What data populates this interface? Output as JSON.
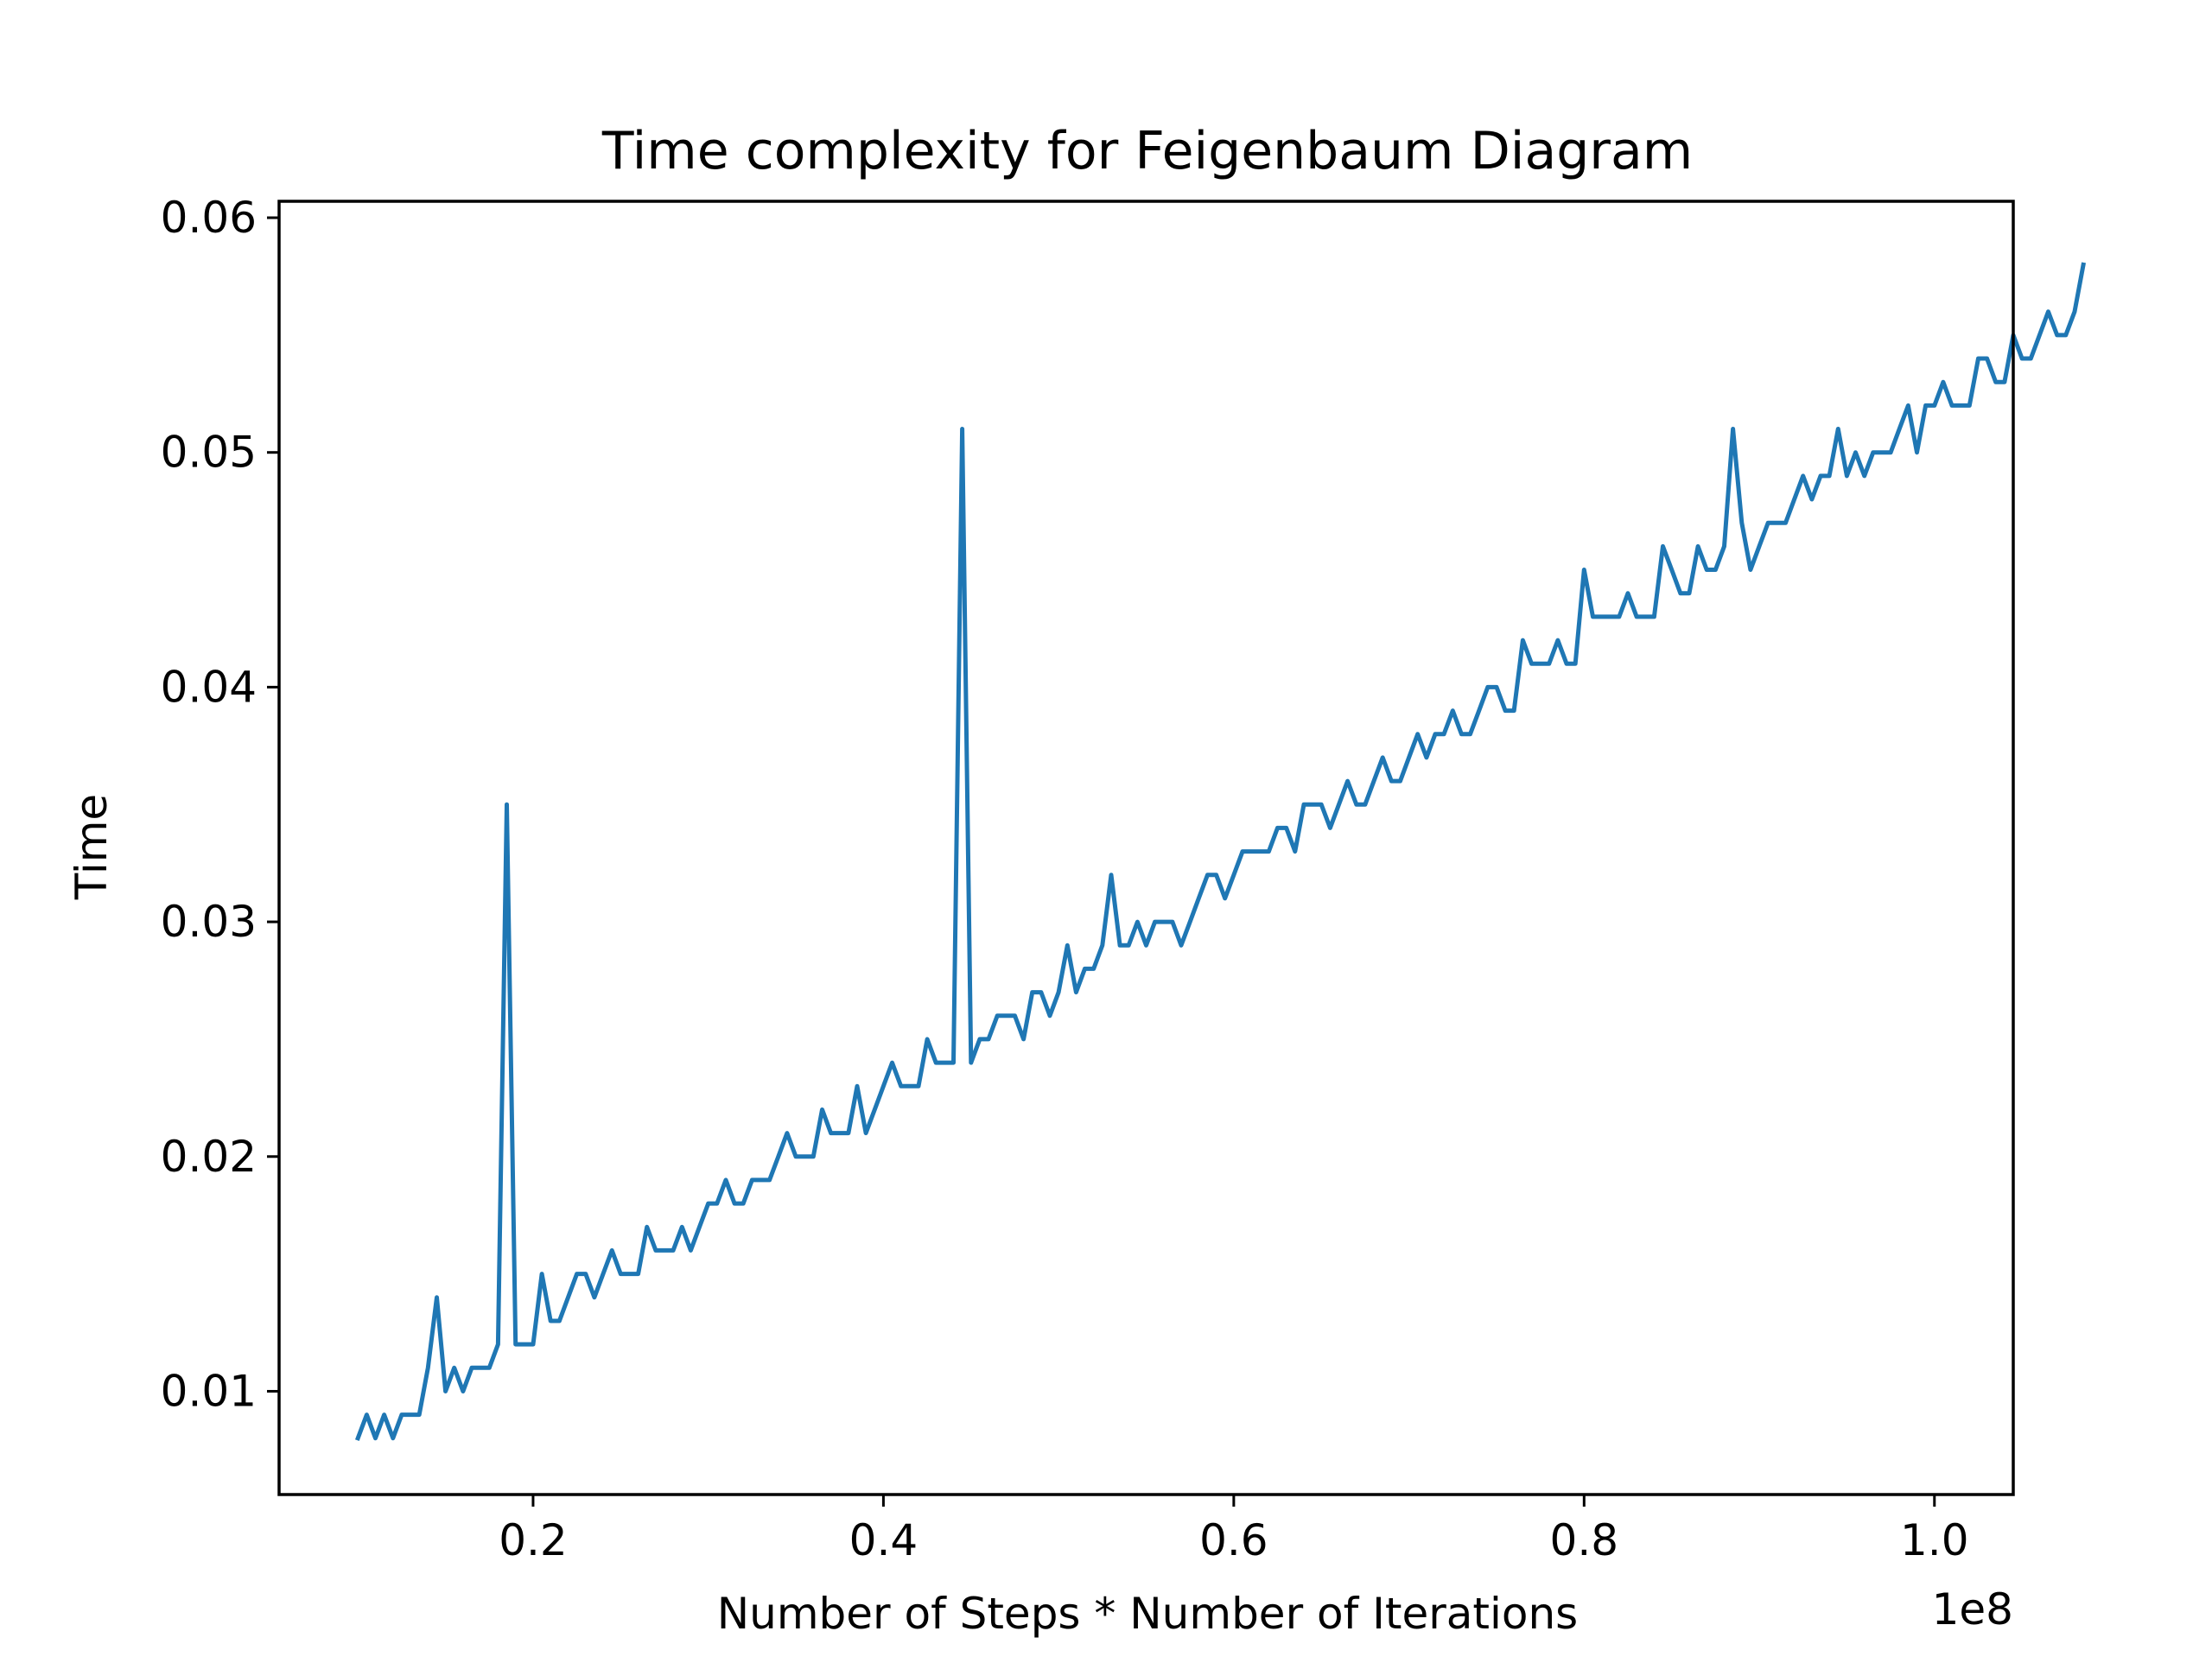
{
  "chart_data": {
    "type": "line",
    "title": "Time complexity for Feigenbaum Diagram",
    "xlabel": "Number of Steps * Number of Iterations",
    "ylabel": "Time",
    "x_offset_label": "1e8",
    "xlim": [
      0.055,
      1.045
    ],
    "ylim": [
      0.0056,
      0.0607
    ],
    "x_ticks": [
      0.2,
      0.4,
      0.6,
      0.8,
      1.0
    ],
    "x_tick_labels": [
      "0.2",
      "0.4",
      "0.6",
      "0.8",
      "1.0"
    ],
    "y_ticks": [
      0.01,
      0.02,
      0.03,
      0.04,
      0.05,
      0.06
    ],
    "y_tick_labels": [
      "0.01",
      "0.02",
      "0.03",
      "0.04",
      "0.05",
      "0.06"
    ],
    "grid": false,
    "legend": "none",
    "color": "#1f77b4",
    "series": [
      {
        "x_start": 0.1,
        "x_step": 0.005,
        "values": [
          0.008,
          0.009,
          0.008,
          0.009,
          0.008,
          0.009,
          0.009,
          0.009,
          0.011,
          0.014,
          0.01,
          0.011,
          0.01,
          0.011,
          0.011,
          0.011,
          0.012,
          0.035,
          0.012,
          0.012,
          0.012,
          0.015,
          0.013,
          0.013,
          0.014,
          0.015,
          0.015,
          0.014,
          0.015,
          0.016,
          0.015,
          0.015,
          0.015,
          0.017,
          0.016,
          0.016,
          0.016,
          0.017,
          0.016,
          0.017,
          0.018,
          0.018,
          0.019,
          0.018,
          0.018,
          0.019,
          0.019,
          0.019,
          0.02,
          0.021,
          0.02,
          0.02,
          0.02,
          0.022,
          0.021,
          0.021,
          0.021,
          0.023,
          0.021,
          0.022,
          0.023,
          0.024,
          0.023,
          0.023,
          0.023,
          0.025,
          0.024,
          0.024,
          0.024,
          0.051,
          0.024,
          0.025,
          0.025,
          0.026,
          0.026,
          0.026,
          0.025,
          0.027,
          0.027,
          0.026,
          0.027,
          0.029,
          0.027,
          0.028,
          0.028,
          0.029,
          0.032,
          0.029,
          0.029,
          0.03,
          0.029,
          0.03,
          0.03,
          0.03,
          0.029,
          0.03,
          0.031,
          0.032,
          0.032,
          0.031,
          0.032,
          0.033,
          0.033,
          0.033,
          0.033,
          0.034,
          0.034,
          0.033,
          0.035,
          0.035,
          0.035,
          0.034,
          0.035,
          0.036,
          0.035,
          0.035,
          0.036,
          0.037,
          0.036,
          0.036,
          0.037,
          0.038,
          0.037,
          0.038,
          0.038,
          0.039,
          0.038,
          0.038,
          0.039,
          0.04,
          0.04,
          0.039,
          0.039,
          0.042,
          0.041,
          0.041,
          0.041,
          0.042,
          0.041,
          0.041,
          0.045,
          0.043,
          0.043,
          0.043,
          0.043,
          0.044,
          0.043,
          0.043,
          0.043,
          0.046,
          0.045,
          0.044,
          0.044,
          0.046,
          0.045,
          0.045,
          0.046,
          0.051,
          0.047,
          0.045,
          0.046,
          0.047,
          0.047,
          0.047,
          0.048,
          0.049,
          0.048,
          0.049,
          0.049,
          0.051,
          0.049,
          0.05,
          0.049,
          0.05,
          0.05,
          0.05,
          0.051,
          0.052,
          0.05,
          0.052,
          0.052,
          0.053,
          0.052,
          0.052,
          0.052,
          0.054,
          0.054,
          0.053,
          0.053,
          0.055,
          0.054,
          0.054,
          0.055,
          0.056,
          0.055,
          0.055,
          0.056,
          0.058
        ]
      }
    ]
  }
}
